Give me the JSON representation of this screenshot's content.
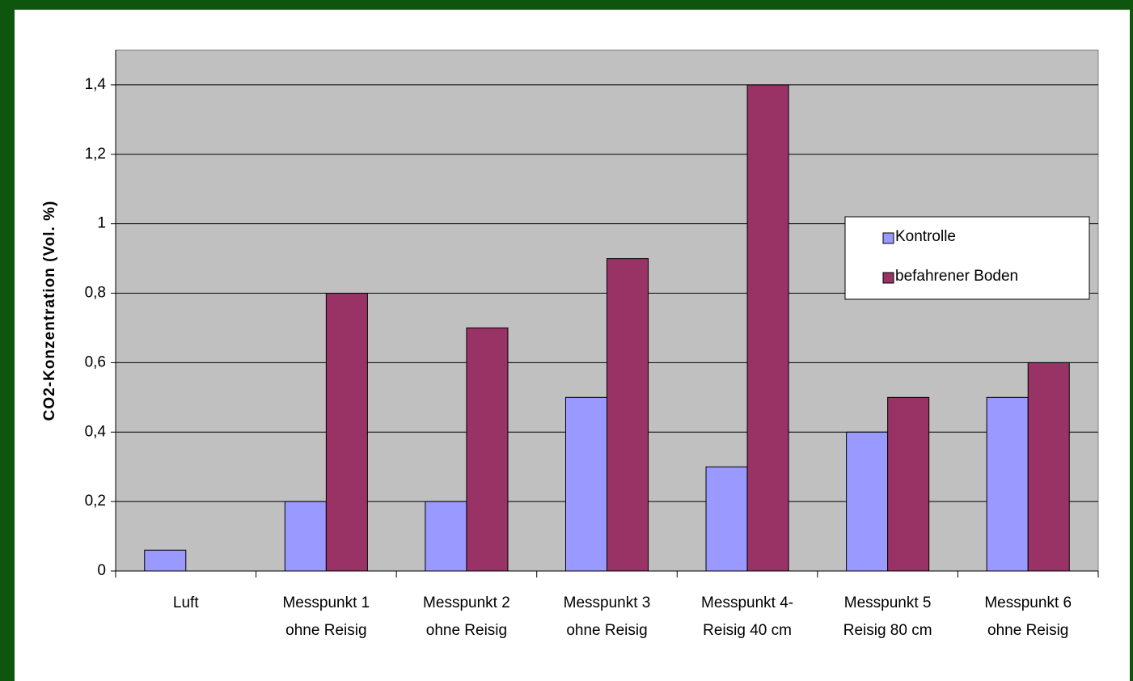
{
  "chart_data": {
    "type": "bar",
    "y_label": "CO2-Konzentration (Vol. %)",
    "categories": [
      [
        "Luft"
      ],
      [
        "Messpunkt 1",
        "ohne Reisig"
      ],
      [
        "Messpunkt 2",
        "ohne Reisig"
      ],
      [
        "Messpunkt 3",
        "ohne Reisig"
      ],
      [
        "Messpunkt 4-",
        "Reisig 40 cm"
      ],
      [
        "Messpunkt 5",
        "Reisig 80 cm"
      ],
      [
        "Messpunkt 6",
        "ohne Reisig"
      ]
    ],
    "series": [
      {
        "name": "Kontrolle",
        "color": "#9999ff",
        "values": [
          0.06,
          0.2,
          0.2,
          0.5,
          0.3,
          0.4,
          0.5
        ]
      },
      {
        "name": "befahrener Boden",
        "color": "#993366",
        "values": [
          null,
          0.8,
          0.7,
          0.9,
          1.4,
          0.5,
          0.6
        ]
      }
    ],
    "ylim": [
      0,
      1.5
    ],
    "yticks": [
      0,
      {
        "value": 0.2,
        "label": "0,2"
      },
      {
        "value": 0.4,
        "label": "0,4"
      },
      {
        "value": 0.6,
        "label": "0,6"
      },
      {
        "value": 0.8,
        "label": "0,8"
      },
      1,
      {
        "value": 1.2,
        "label": "1,2"
      },
      {
        "value": 1.4,
        "label": "1,4"
      }
    ],
    "grid": true,
    "legend": "right"
  }
}
